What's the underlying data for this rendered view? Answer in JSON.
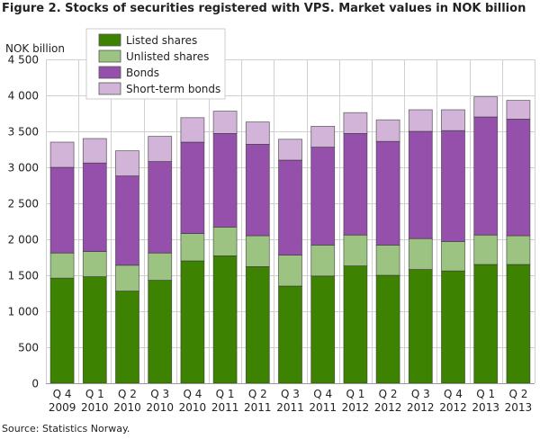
{
  "chart_data": {
    "type": "bar",
    "stacked": true,
    "title": "Figure 2. Stocks of securities registered with VPS. Market values in NOK billion",
    "ylabel": "NOK billion",
    "xlabel": "",
    "source": "Source: Statistics Norway.",
    "ylim": [
      0,
      4500
    ],
    "yticks": [
      "0",
      "500",
      "1 000",
      "1 500",
      "2 000",
      "2 500",
      "3 000",
      "3 500",
      "4 000",
      "4 500"
    ],
    "grid": true,
    "legend_position": "top-left",
    "categories": [
      [
        "Q 4",
        "2009"
      ],
      [
        "Q 1",
        "2010"
      ],
      [
        "Q 2",
        "2010"
      ],
      [
        "Q 3",
        "2010"
      ],
      [
        "Q 4",
        "2010"
      ],
      [
        "Q 1",
        "2011"
      ],
      [
        "Q 2",
        "2011"
      ],
      [
        "Q 3",
        "2011"
      ],
      [
        "Q 4",
        "2011"
      ],
      [
        "Q 1",
        "2012"
      ],
      [
        "Q 2",
        "2012"
      ],
      [
        "Q 3",
        "2012"
      ],
      [
        "Q 4",
        "2012"
      ],
      [
        "Q 1",
        "2013"
      ],
      [
        "Q 2",
        "2013"
      ]
    ],
    "series": [
      {
        "name": "Listed shares",
        "color": "#3d8200",
        "values": [
          1460,
          1480,
          1280,
          1430,
          1700,
          1770,
          1620,
          1350,
          1490,
          1630,
          1500,
          1580,
          1560,
          1650,
          1650
        ]
      },
      {
        "name": "Unlisted shares",
        "color": "#9dc383",
        "values": [
          350,
          350,
          360,
          380,
          380,
          400,
          430,
          430,
          430,
          430,
          420,
          430,
          410,
          410,
          400
        ]
      },
      {
        "name": "Bonds",
        "color": "#9450aa",
        "values": [
          1190,
          1230,
          1240,
          1270,
          1270,
          1300,
          1270,
          1320,
          1360,
          1410,
          1440,
          1490,
          1540,
          1640,
          1620
        ]
      },
      {
        "name": "Short-term bonds",
        "color": "#d2b4d9",
        "values": [
          350,
          340,
          350,
          350,
          340,
          310,
          310,
          290,
          290,
          290,
          300,
          300,
          290,
          280,
          260
        ]
      }
    ]
  }
}
